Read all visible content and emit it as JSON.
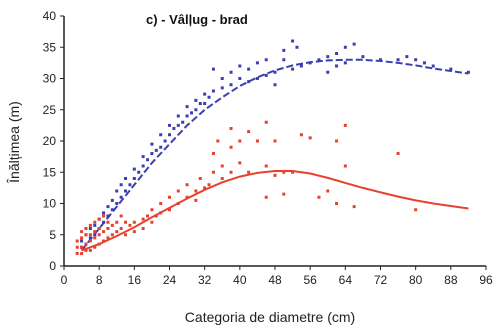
{
  "chart_data": {
    "type": "scatter",
    "title": "c) - Vâlļug - brad",
    "xlabel": "Categoria de diametre (cm)",
    "ylabel": "Înălțimea (m)",
    "xlim": [
      0,
      96
    ],
    "ylim": [
      0,
      40
    ],
    "xticks": [
      0,
      8,
      16,
      24,
      32,
      40,
      48,
      56,
      64,
      72,
      80,
      88,
      96
    ],
    "yticks": [
      0,
      5,
      10,
      15,
      20,
      25,
      30,
      35,
      40
    ],
    "grid": false,
    "colors": {
      "blue": "#3b3fb0",
      "red": "#e8402c",
      "axis": "#222222"
    },
    "series": [
      {
        "color": "#3b3fb0",
        "points": [
          [
            4,
            3
          ],
          [
            4,
            4
          ],
          [
            5,
            5
          ],
          [
            5,
            3.5
          ],
          [
            6,
            4.5
          ],
          [
            6,
            6
          ],
          [
            7,
            5
          ],
          [
            7,
            6.5
          ],
          [
            8,
            6
          ],
          [
            8,
            7.5
          ],
          [
            9,
            7
          ],
          [
            9,
            8.5
          ],
          [
            10,
            8
          ],
          [
            10,
            9.5
          ],
          [
            11,
            9
          ],
          [
            11,
            10.5
          ],
          [
            12,
            10
          ],
          [
            12,
            12
          ],
          [
            13,
            11
          ],
          [
            13,
            13
          ],
          [
            14,
            12
          ],
          [
            14,
            14
          ],
          [
            15,
            13
          ],
          [
            16,
            14
          ],
          [
            16,
            15.5
          ],
          [
            17,
            15
          ],
          [
            18,
            16
          ],
          [
            18,
            17.5
          ],
          [
            19,
            17
          ],
          [
            20,
            18
          ],
          [
            20,
            19.5
          ],
          [
            21,
            18.5
          ],
          [
            22,
            19
          ],
          [
            22,
            21
          ],
          [
            23,
            20
          ],
          [
            24,
            21
          ],
          [
            24,
            22.5
          ],
          [
            25,
            22
          ],
          [
            26,
            22.5
          ],
          [
            26,
            24
          ],
          [
            27,
            23
          ],
          [
            28,
            24
          ],
          [
            28,
            25.5
          ],
          [
            29,
            24.5
          ],
          [
            30,
            25
          ],
          [
            30,
            26.5
          ],
          [
            31,
            26
          ],
          [
            32,
            26
          ],
          [
            32,
            27.5
          ],
          [
            33,
            27
          ],
          [
            34,
            28
          ],
          [
            34,
            31.5
          ],
          [
            36,
            28.5
          ],
          [
            36,
            30
          ],
          [
            38,
            29
          ],
          [
            38,
            31
          ],
          [
            40,
            30
          ],
          [
            40,
            32
          ],
          [
            42,
            29.5
          ],
          [
            42,
            31.5
          ],
          [
            44,
            30
          ],
          [
            44,
            32.5
          ],
          [
            46,
            30.5
          ],
          [
            46,
            33
          ],
          [
            48,
            31
          ],
          [
            48,
            29
          ],
          [
            50,
            33
          ],
          [
            50,
            34.5
          ],
          [
            52,
            36
          ],
          [
            52,
            31.5
          ],
          [
            53,
            35
          ],
          [
            54,
            32
          ],
          [
            56,
            32.5
          ],
          [
            58,
            33
          ],
          [
            60,
            33.5
          ],
          [
            60,
            31
          ],
          [
            62,
            32
          ],
          [
            62,
            34
          ],
          [
            64,
            32.5
          ],
          [
            64,
            35
          ],
          [
            66,
            35.5
          ],
          [
            68,
            33.5
          ],
          [
            72,
            33
          ],
          [
            76,
            33
          ],
          [
            78,
            33.5
          ],
          [
            80,
            33
          ],
          [
            82,
            32.5
          ],
          [
            84,
            32
          ],
          [
            88,
            31.5
          ],
          [
            92,
            31
          ]
        ],
        "curve": [
          [
            4,
            2.5
          ],
          [
            8,
            6
          ],
          [
            12,
            9.5
          ],
          [
            16,
            13
          ],
          [
            20,
            16.5
          ],
          [
            24,
            19.5
          ],
          [
            28,
            22.5
          ],
          [
            32,
            25
          ],
          [
            36,
            27
          ],
          [
            40,
            28.8
          ],
          [
            44,
            30.2
          ],
          [
            48,
            31.3
          ],
          [
            52,
            32.1
          ],
          [
            56,
            32.6
          ],
          [
            60,
            32.9
          ],
          [
            64,
            33
          ],
          [
            68,
            33
          ],
          [
            72,
            32.8
          ],
          [
            76,
            32.5
          ],
          [
            80,
            32.1
          ],
          [
            84,
            31.6
          ],
          [
            88,
            31.2
          ],
          [
            92,
            30.8
          ]
        ]
      },
      {
        "color": "#e8402c",
        "points": [
          [
            3,
            2
          ],
          [
            3,
            3
          ],
          [
            3,
            4
          ],
          [
            4,
            2
          ],
          [
            4,
            3
          ],
          [
            4,
            4.5
          ],
          [
            4,
            5.5
          ],
          [
            5,
            2.5
          ],
          [
            5,
            3.5
          ],
          [
            5,
            5
          ],
          [
            5,
            6
          ],
          [
            6,
            2.5
          ],
          [
            6,
            4
          ],
          [
            6,
            5
          ],
          [
            6,
            6.5
          ],
          [
            7,
            3
          ],
          [
            7,
            4.5
          ],
          [
            7,
            5.5
          ],
          [
            7,
            7
          ],
          [
            8,
            3.5
          ],
          [
            8,
            5
          ],
          [
            8,
            6
          ],
          [
            8,
            7.5
          ],
          [
            9,
            4
          ],
          [
            9,
            5.5
          ],
          [
            9,
            8
          ],
          [
            10,
            4.5
          ],
          [
            10,
            6
          ],
          [
            10,
            7
          ],
          [
            11,
            5
          ],
          [
            11,
            6.5
          ],
          [
            12,
            5.5
          ],
          [
            12,
            7
          ],
          [
            13,
            6
          ],
          [
            13,
            8
          ],
          [
            14,
            5
          ],
          [
            14,
            7
          ],
          [
            15,
            6.5
          ],
          [
            16,
            7
          ],
          [
            16,
            5.5
          ],
          [
            18,
            7.5
          ],
          [
            18,
            6
          ],
          [
            19,
            8
          ],
          [
            20,
            7
          ],
          [
            20,
            9
          ],
          [
            21,
            8
          ],
          [
            22,
            10
          ],
          [
            22,
            8.5
          ],
          [
            24,
            9
          ],
          [
            24,
            11
          ],
          [
            26,
            10
          ],
          [
            26,
            12
          ],
          [
            28,
            11
          ],
          [
            28,
            13
          ],
          [
            30,
            12
          ],
          [
            30,
            10.5
          ],
          [
            31,
            14
          ],
          [
            32,
            12.5
          ],
          [
            33,
            13
          ],
          [
            34,
            18
          ],
          [
            34,
            15
          ],
          [
            35,
            20
          ],
          [
            36,
            14
          ],
          [
            36,
            16
          ],
          [
            38,
            22
          ],
          [
            38,
            19
          ],
          [
            38,
            15
          ],
          [
            40,
            20
          ],
          [
            40,
            16.5
          ],
          [
            42,
            21.5
          ],
          [
            42,
            15
          ],
          [
            44,
            20
          ],
          [
            46,
            23
          ],
          [
            46,
            16
          ],
          [
            46,
            11
          ],
          [
            48,
            20
          ],
          [
            48,
            14.5
          ],
          [
            50,
            15
          ],
          [
            50,
            11.5
          ],
          [
            52,
            15
          ],
          [
            54,
            21
          ],
          [
            56,
            20.5
          ],
          [
            58,
            11
          ],
          [
            60,
            12
          ],
          [
            62,
            10
          ],
          [
            62,
            20
          ],
          [
            64,
            22.5
          ],
          [
            64,
            16
          ],
          [
            66,
            9.5
          ],
          [
            76,
            18
          ],
          [
            80,
            9
          ]
        ],
        "curve": [
          [
            4,
            2.5
          ],
          [
            8,
            3.5
          ],
          [
            12,
            4.8
          ],
          [
            16,
            6.2
          ],
          [
            20,
            7.8
          ],
          [
            24,
            9.3
          ],
          [
            28,
            10.8
          ],
          [
            32,
            12.2
          ],
          [
            36,
            13.4
          ],
          [
            40,
            14.3
          ],
          [
            44,
            14.9
          ],
          [
            48,
            15.2
          ],
          [
            52,
            15.2
          ],
          [
            56,
            14.8
          ],
          [
            60,
            14.1
          ],
          [
            64,
            13.3
          ],
          [
            68,
            12.5
          ],
          [
            72,
            11.8
          ],
          [
            76,
            11.1
          ],
          [
            80,
            10.5
          ],
          [
            84,
            10
          ],
          [
            88,
            9.6
          ],
          [
            92,
            9.2
          ]
        ]
      }
    ]
  }
}
